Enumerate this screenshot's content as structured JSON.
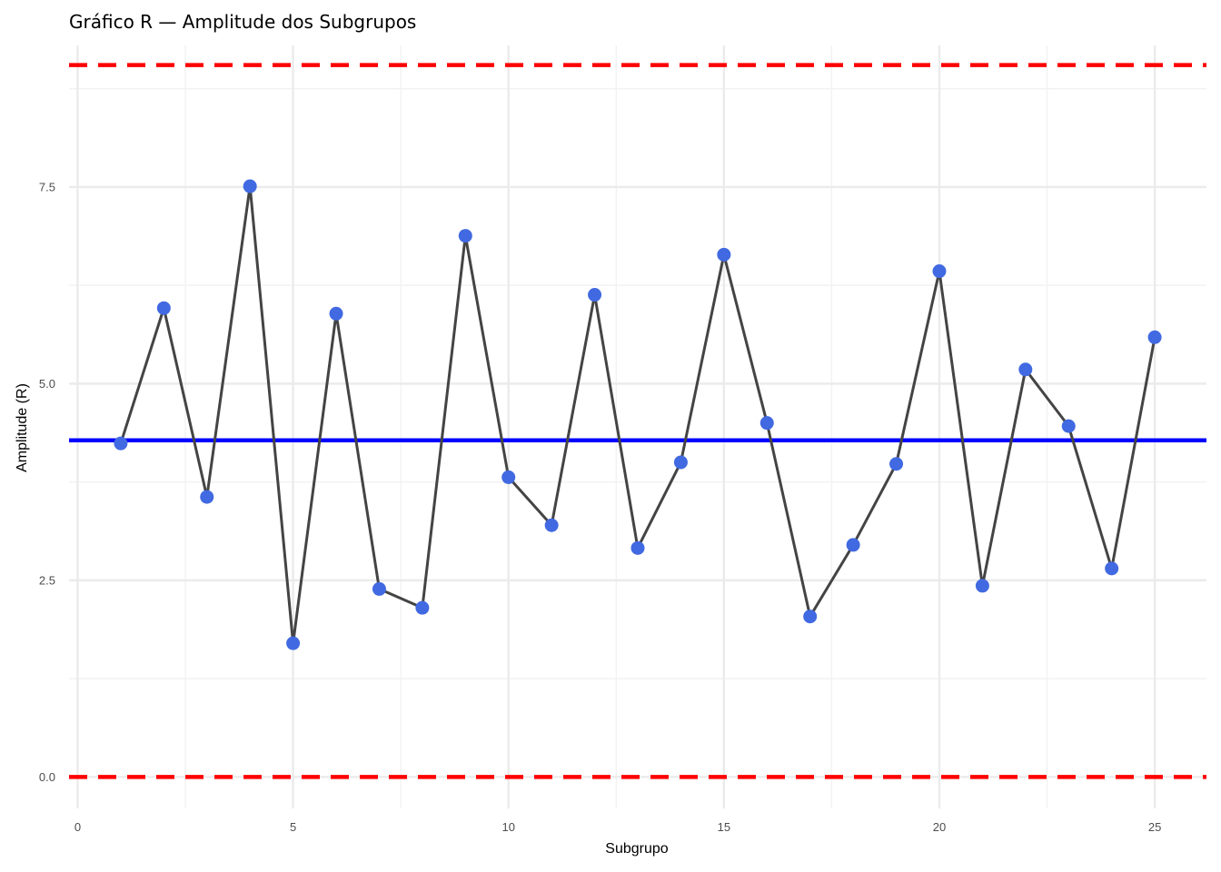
{
  "chart_data": {
    "type": "line",
    "title": "Gráfico R — Amplitude dos Subgrupos",
    "xlabel": "Subgrupo",
    "ylabel": "Amplitude (R)",
    "xlim": [
      -0.2,
      26.2
    ],
    "ylim": [
      -0.4,
      9.3
    ],
    "x_ticks": [
      0,
      5,
      10,
      15,
      20,
      25
    ],
    "x_tick_labels": [
      "0",
      "5",
      "10",
      "15",
      "20",
      "25"
    ],
    "y_ticks": [
      0,
      2.5,
      5,
      7.5
    ],
    "y_tick_labels": [
      "0.0",
      "2.5",
      "5.0",
      "7.5"
    ],
    "grid": true,
    "x": [
      1,
      2,
      3,
      4,
      5,
      6,
      7,
      8,
      9,
      10,
      11,
      12,
      13,
      14,
      15,
      16,
      17,
      18,
      19,
      20,
      21,
      22,
      23,
      24,
      25
    ],
    "series": [
      {
        "values": [
          4.24,
          5.96,
          3.56,
          7.51,
          1.7,
          5.89,
          2.39,
          2.15,
          6.88,
          3.81,
          3.2,
          6.13,
          2.91,
          4.0,
          6.64,
          4.5,
          2.04,
          2.95,
          3.98,
          6.43,
          2.43,
          5.18,
          4.46,
          2.65,
          5.59
        ],
        "line_color": "#444444",
        "point_color": "#4169e1"
      }
    ],
    "reference_lines": [
      {
        "value": 9.05,
        "style": "dashed",
        "color": "#ff0000"
      },
      {
        "value": 4.28,
        "style": "solid",
        "color": "#0000ff"
      },
      {
        "value": 0.0,
        "style": "dashed",
        "color": "#ff0000"
      }
    ],
    "colors": {
      "grid_major": "#ebebeb",
      "grid_minor": "#f2f2f2"
    }
  }
}
